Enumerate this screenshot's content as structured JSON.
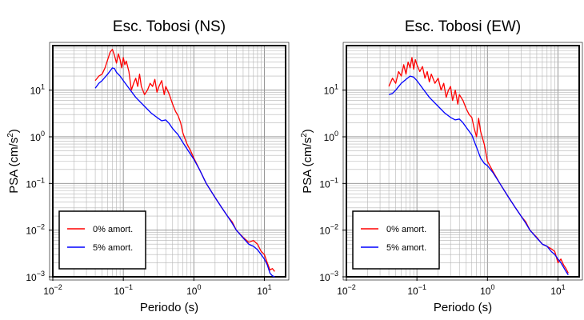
{
  "chart_data": [
    {
      "type": "line",
      "title": "Esc. Tobosi (NS)",
      "xlabel": "Periodo (s)",
      "ylabel": "PSA (cm/s",
      "ylabel_sup": "2",
      "ylabel_close": ")",
      "xscale": "log",
      "yscale": "log",
      "xlim": [
        0.01,
        20
      ],
      "ylim": [
        0.001,
        90
      ],
      "grid": true,
      "legend_position": "bottom-left",
      "xticks": [
        {
          "base": "10",
          "exp": "−2",
          "value": 0.01
        },
        {
          "base": "10",
          "exp": "−1",
          "value": 0.1
        },
        {
          "base": "10",
          "exp": "0",
          "value": 1
        },
        {
          "base": "10",
          "exp": "1",
          "value": 10
        }
      ],
      "yticks": [
        {
          "base": "10",
          "exp": "−3",
          "value": 0.001
        },
        {
          "base": "10",
          "exp": "−2",
          "value": 0.01
        },
        {
          "base": "10",
          "exp": "−1",
          "value": 0.1
        },
        {
          "base": "10",
          "exp": "0",
          "value": 1
        },
        {
          "base": "10",
          "exp": "1",
          "value": 10
        }
      ],
      "series": [
        {
          "name": "0% amort.",
          "color": "#ff0000",
          "points": [
            [
              0.04,
              16
            ],
            [
              0.045,
              20
            ],
            [
              0.05,
              22
            ],
            [
              0.055,
              30
            ],
            [
              0.06,
              45
            ],
            [
              0.065,
              65
            ],
            [
              0.07,
              75
            ],
            [
              0.075,
              55
            ],
            [
              0.08,
              38
            ],
            [
              0.085,
              60
            ],
            [
              0.09,
              45
            ],
            [
              0.095,
              30
            ],
            [
              0.1,
              50
            ],
            [
              0.105,
              35
            ],
            [
              0.11,
              42
            ],
            [
              0.12,
              25
            ],
            [
              0.13,
              10
            ],
            [
              0.14,
              14
            ],
            [
              0.15,
              18
            ],
            [
              0.16,
              12
            ],
            [
              0.17,
              22
            ],
            [
              0.18,
              12
            ],
            [
              0.2,
              8
            ],
            [
              0.22,
              10
            ],
            [
              0.24,
              14
            ],
            [
              0.26,
              12
            ],
            [
              0.28,
              17
            ],
            [
              0.3,
              9
            ],
            [
              0.32,
              12
            ],
            [
              0.35,
              16
            ],
            [
              0.38,
              8
            ],
            [
              0.4,
              12
            ],
            [
              0.45,
              8
            ],
            [
              0.5,
              5
            ],
            [
              0.55,
              3.5
            ],
            [
              0.6,
              2.8
            ],
            [
              0.65,
              2
            ],
            [
              0.7,
              1.2
            ],
            [
              0.8,
              0.7
            ],
            [
              0.9,
              0.5
            ],
            [
              1,
              0.35
            ],
            [
              1.2,
              0.2
            ],
            [
              1.5,
              0.1
            ],
            [
              2,
              0.05
            ],
            [
              2.5,
              0.03
            ],
            [
              3,
              0.02
            ],
            [
              3.5,
              0.015
            ],
            [
              4,
              0.01
            ],
            [
              5,
              0.007
            ],
            [
              6,
              0.0055
            ],
            [
              7,
              0.006
            ],
            [
              8,
              0.005
            ],
            [
              9,
              0.0035
            ],
            [
              10,
              0.003
            ],
            [
              11,
              0.002
            ],
            [
              12,
              0.0014
            ],
            [
              13,
              0.0015
            ],
            [
              14,
              0.0013
            ]
          ]
        },
        {
          "name": "5% amort.",
          "color": "#0000ff",
          "points": [
            [
              0.04,
              11
            ],
            [
              0.045,
              14
            ],
            [
              0.05,
              16
            ],
            [
              0.06,
              22
            ],
            [
              0.07,
              30
            ],
            [
              0.075,
              29
            ],
            [
              0.08,
              24
            ],
            [
              0.09,
              20
            ],
            [
              0.1,
              16
            ],
            [
              0.12,
              11
            ],
            [
              0.15,
              7
            ],
            [
              0.2,
              4.5
            ],
            [
              0.25,
              3.2
            ],
            [
              0.3,
              2.6
            ],
            [
              0.35,
              2.2
            ],
            [
              0.4,
              2.3
            ],
            [
              0.45,
              1.9
            ],
            [
              0.5,
              1.5
            ],
            [
              0.6,
              1.1
            ],
            [
              0.7,
              0.75
            ],
            [
              0.8,
              0.55
            ],
            [
              0.9,
              0.42
            ],
            [
              1,
              0.33
            ],
            [
              1.2,
              0.2
            ],
            [
              1.5,
              0.1
            ],
            [
              2,
              0.05
            ],
            [
              2.5,
              0.03
            ],
            [
              3,
              0.02
            ],
            [
              3.5,
              0.014
            ],
            [
              4,
              0.01
            ],
            [
              5,
              0.0068
            ],
            [
              6,
              0.005
            ],
            [
              7,
              0.0045
            ],
            [
              8,
              0.0038
            ],
            [
              9,
              0.003
            ],
            [
              10,
              0.0024
            ],
            [
              11,
              0.0018
            ],
            [
              12,
              0.0012
            ],
            [
              13,
              0.00105
            ],
            [
              14,
              0.001
            ]
          ]
        }
      ]
    },
    {
      "type": "line",
      "title": "Esc. Tobosi (EW)",
      "xlabel": "Periodo (s)",
      "ylabel": "PSA (cm/s",
      "ylabel_sup": "2",
      "ylabel_close": ")",
      "xscale": "log",
      "yscale": "log",
      "xlim": [
        0.01,
        20
      ],
      "ylim": [
        0.001,
        90
      ],
      "grid": true,
      "legend_position": "bottom-left",
      "xticks": [
        {
          "base": "10",
          "exp": "−2",
          "value": 0.01
        },
        {
          "base": "10",
          "exp": "−1",
          "value": 0.1
        },
        {
          "base": "10",
          "exp": "0",
          "value": 1
        },
        {
          "base": "10",
          "exp": "1",
          "value": 10
        }
      ],
      "yticks": [
        {
          "base": "10",
          "exp": "−3",
          "value": 0.001
        },
        {
          "base": "10",
          "exp": "−2",
          "value": 0.01
        },
        {
          "base": "10",
          "exp": "−1",
          "value": 0.1
        },
        {
          "base": "10",
          "exp": "0",
          "value": 1
        },
        {
          "base": "10",
          "exp": "1",
          "value": 10
        }
      ],
      "series": [
        {
          "name": "0% amort.",
          "color": "#ff0000",
          "points": [
            [
              0.04,
              12
            ],
            [
              0.045,
              18
            ],
            [
              0.05,
              14
            ],
            [
              0.055,
              25
            ],
            [
              0.06,
              20
            ],
            [
              0.065,
              35
            ],
            [
              0.07,
              22
            ],
            [
              0.075,
              40
            ],
            [
              0.08,
              30
            ],
            [
              0.085,
              50
            ],
            [
              0.09,
              28
            ],
            [
              0.095,
              45
            ],
            [
              0.1,
              35
            ],
            [
              0.11,
              25
            ],
            [
              0.12,
              32
            ],
            [
              0.13,
              18
            ],
            [
              0.14,
              25
            ],
            [
              0.15,
              15
            ],
            [
              0.16,
              22
            ],
            [
              0.18,
              14
            ],
            [
              0.2,
              18
            ],
            [
              0.22,
              10
            ],
            [
              0.24,
              14
            ],
            [
              0.26,
              7
            ],
            [
              0.28,
              10
            ],
            [
              0.3,
              12
            ],
            [
              0.32,
              6
            ],
            [
              0.35,
              10
            ],
            [
              0.38,
              5
            ],
            [
              0.4,
              8
            ],
            [
              0.45,
              6
            ],
            [
              0.5,
              4
            ],
            [
              0.55,
              3
            ],
            [
              0.6,
              2.6
            ],
            [
              0.65,
              1.5
            ],
            [
              0.7,
              1
            ],
            [
              0.75,
              2.5
            ],
            [
              0.8,
              1.3
            ],
            [
              0.9,
              0.7
            ],
            [
              1,
              0.3
            ],
            [
              1.2,
              0.18
            ],
            [
              1.5,
              0.1
            ],
            [
              2,
              0.05
            ],
            [
              2.5,
              0.03
            ],
            [
              3,
              0.02
            ],
            [
              3.5,
              0.015
            ],
            [
              4,
              0.01
            ],
            [
              5,
              0.007
            ],
            [
              6,
              0.005
            ],
            [
              7,
              0.0045
            ],
            [
              8,
              0.004
            ],
            [
              9,
              0.0035
            ],
            [
              10,
              0.002
            ],
            [
              11,
              0.0024
            ],
            [
              12,
              0.0018
            ],
            [
              13,
              0.0015
            ],
            [
              14,
              0.0012
            ]
          ]
        },
        {
          "name": "5% amort.",
          "color": "#0000ff",
          "points": [
            [
              0.04,
              8
            ],
            [
              0.045,
              8.5
            ],
            [
              0.05,
              10
            ],
            [
              0.06,
              14
            ],
            [
              0.07,
              17
            ],
            [
              0.08,
              20
            ],
            [
              0.09,
              19
            ],
            [
              0.1,
              16
            ],
            [
              0.12,
              11
            ],
            [
              0.15,
              7
            ],
            [
              0.2,
              4.5
            ],
            [
              0.25,
              3.2
            ],
            [
              0.3,
              2.6
            ],
            [
              0.35,
              2.3
            ],
            [
              0.4,
              2.4
            ],
            [
              0.45,
              2
            ],
            [
              0.5,
              1.6
            ],
            [
              0.6,
              1.1
            ],
            [
              0.7,
              0.6
            ],
            [
              0.8,
              0.35
            ],
            [
              0.9,
              0.27
            ],
            [
              1,
              0.24
            ],
            [
              1.2,
              0.17
            ],
            [
              1.5,
              0.1
            ],
            [
              2,
              0.05
            ],
            [
              2.5,
              0.03
            ],
            [
              3,
              0.02
            ],
            [
              3.5,
              0.014
            ],
            [
              4,
              0.01
            ],
            [
              5,
              0.0068
            ],
            [
              6,
              0.005
            ],
            [
              7,
              0.0045
            ],
            [
              8,
              0.0035
            ],
            [
              9,
              0.003
            ],
            [
              10,
              0.0024
            ],
            [
              11,
              0.002
            ],
            [
              12,
              0.0016
            ],
            [
              13,
              0.0013
            ],
            [
              14,
              0.0011
            ]
          ]
        }
      ]
    }
  ]
}
